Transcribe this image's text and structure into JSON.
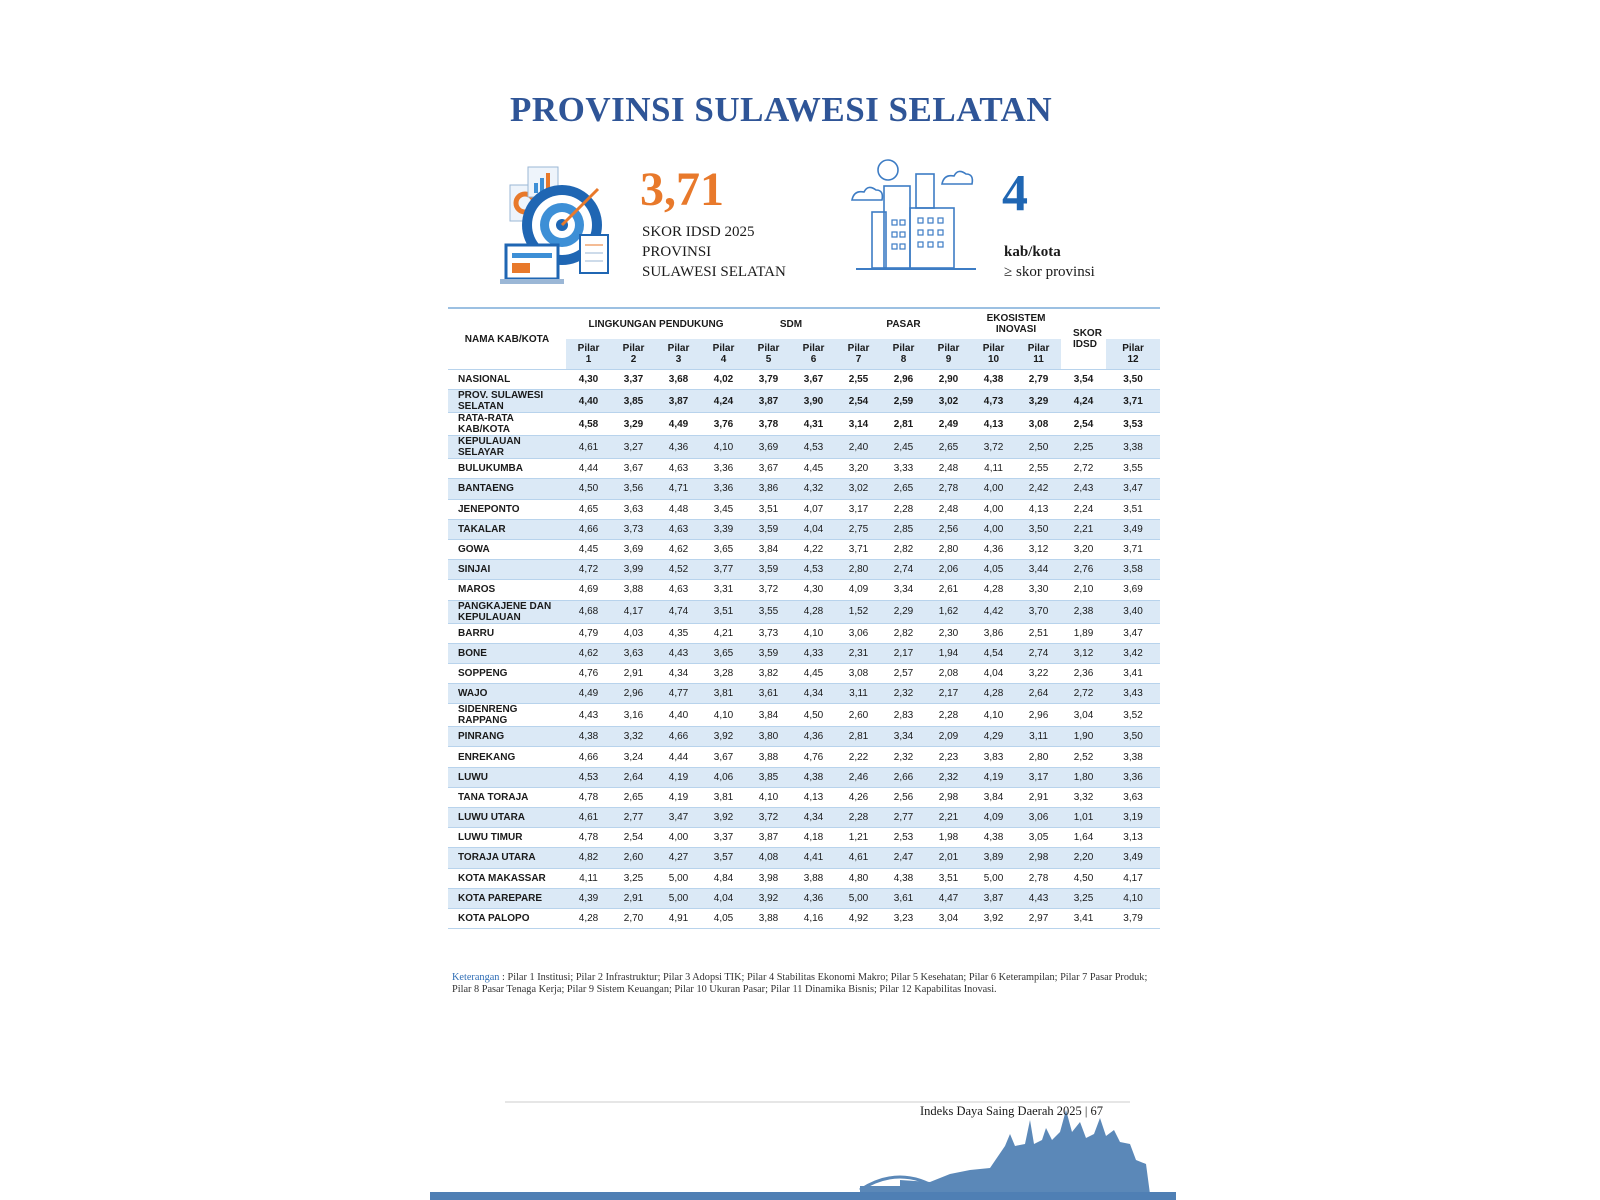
{
  "header": {
    "title": "PROVINSI SULAWESI SELATAN"
  },
  "summary": {
    "score": "3,71",
    "score_caption": [
      "SKOR IDSD 2025",
      "PROVINSI",
      "SULAWESI SELATAN"
    ],
    "count": "4",
    "count_unit": "kab/kota",
    "count_caption": "≥ skor provinsi"
  },
  "table": {
    "name_header": "NAMA KAB/KOTA",
    "score_header": "SKOR IDSD",
    "group_headers": [
      "LINGKUNGAN PENDUKUNG",
      "SDM",
      "PASAR",
      "EKOSISTEM INOVASI"
    ],
    "pillar_headers": [
      "Pilar 1",
      "Pilar 2",
      "Pilar 3",
      "Pilar 4",
      "Pilar 5",
      "Pilar 6",
      "Pilar 7",
      "Pilar 8",
      "Pilar 9",
      "Pilar 10",
      "Pilar 11",
      "Pilar 12"
    ],
    "rows": [
      {
        "name": "NASIONAL",
        "values": [
          "4,30",
          "3,37",
          "3,68",
          "4,02",
          "3,79",
          "3,67",
          "2,55",
          "2,96",
          "2,90",
          "4,38",
          "2,79",
          "3,54"
        ],
        "score": "3,50"
      },
      {
        "name": "PROV. SULAWESI SELATAN",
        "values": [
          "4,40",
          "3,85",
          "3,87",
          "4,24",
          "3,87",
          "3,90",
          "2,54",
          "2,59",
          "3,02",
          "4,73",
          "3,29",
          "4,24"
        ],
        "score": "3,71"
      },
      {
        "name": "RATA-RATA KAB/KOTA",
        "values": [
          "4,58",
          "3,29",
          "4,49",
          "3,76",
          "3,78",
          "4,31",
          "3,14",
          "2,81",
          "2,49",
          "4,13",
          "3,08",
          "2,54"
        ],
        "score": "3,53"
      },
      {
        "name": "KEPULAUAN SELAYAR",
        "values": [
          "4,61",
          "3,27",
          "4,36",
          "4,10",
          "3,69",
          "4,53",
          "2,40",
          "2,45",
          "2,65",
          "3,72",
          "2,50",
          "2,25"
        ],
        "score": "3,38"
      },
      {
        "name": "BULUKUMBA",
        "values": [
          "4,44",
          "3,67",
          "4,63",
          "3,36",
          "3,67",
          "4,45",
          "3,20",
          "3,33",
          "2,48",
          "4,11",
          "2,55",
          "2,72"
        ],
        "score": "3,55"
      },
      {
        "name": "BANTAENG",
        "values": [
          "4,50",
          "3,56",
          "4,71",
          "3,36",
          "3,86",
          "4,32",
          "3,02",
          "2,65",
          "2,78",
          "4,00",
          "2,42",
          "2,43"
        ],
        "score": "3,47"
      },
      {
        "name": "JENEPONTO",
        "values": [
          "4,65",
          "3,63",
          "4,48",
          "3,45",
          "3,51",
          "4,07",
          "3,17",
          "2,28",
          "2,48",
          "4,00",
          "4,13",
          "2,24"
        ],
        "score": "3,51"
      },
      {
        "name": "TAKALAR",
        "values": [
          "4,66",
          "3,73",
          "4,63",
          "3,39",
          "3,59",
          "4,04",
          "2,75",
          "2,85",
          "2,56",
          "4,00",
          "3,50",
          "2,21"
        ],
        "score": "3,49"
      },
      {
        "name": "GOWA",
        "values": [
          "4,45",
          "3,69",
          "4,62",
          "3,65",
          "3,84",
          "4,22",
          "3,71",
          "2,82",
          "2,80",
          "4,36",
          "3,12",
          "3,20"
        ],
        "score": "3,71"
      },
      {
        "name": "SINJAI",
        "values": [
          "4,72",
          "3,99",
          "4,52",
          "3,77",
          "3,59",
          "4,53",
          "2,80",
          "2,74",
          "2,06",
          "4,05",
          "3,44",
          "2,76"
        ],
        "score": "3,58"
      },
      {
        "name": "MAROS",
        "values": [
          "4,69",
          "3,88",
          "4,63",
          "3,31",
          "3,72",
          "4,30",
          "4,09",
          "3,34",
          "2,61",
          "4,28",
          "3,30",
          "2,10"
        ],
        "score": "3,69"
      },
      {
        "name": "PANGKAJENE DAN KEPULAUAN",
        "values": [
          "4,68",
          "4,17",
          "4,74",
          "3,51",
          "3,55",
          "4,28",
          "1,52",
          "2,29",
          "1,62",
          "4,42",
          "3,70",
          "2,38"
        ],
        "score": "3,40"
      },
      {
        "name": "BARRU",
        "values": [
          "4,79",
          "4,03",
          "4,35",
          "4,21",
          "3,73",
          "4,10",
          "3,06",
          "2,82",
          "2,30",
          "3,86",
          "2,51",
          "1,89"
        ],
        "score": "3,47"
      },
      {
        "name": "BONE",
        "values": [
          "4,62",
          "3,63",
          "4,43",
          "3,65",
          "3,59",
          "4,33",
          "2,31",
          "2,17",
          "1,94",
          "4,54",
          "2,74",
          "3,12"
        ],
        "score": "3,42"
      },
      {
        "name": "SOPPENG",
        "values": [
          "4,76",
          "2,91",
          "4,34",
          "3,28",
          "3,82",
          "4,45",
          "3,08",
          "2,57",
          "2,08",
          "4,04",
          "3,22",
          "2,36"
        ],
        "score": "3,41"
      },
      {
        "name": "WAJO",
        "values": [
          "4,49",
          "2,96",
          "4,77",
          "3,81",
          "3,61",
          "4,34",
          "3,11",
          "2,32",
          "2,17",
          "4,28",
          "2,64",
          "2,72"
        ],
        "score": "3,43"
      },
      {
        "name": "SIDENRENG RAPPANG",
        "values": [
          "4,43",
          "3,16",
          "4,40",
          "4,10",
          "3,84",
          "4,50",
          "2,60",
          "2,83",
          "2,28",
          "4,10",
          "2,96",
          "3,04"
        ],
        "score": "3,52"
      },
      {
        "name": "PINRANG",
        "values": [
          "4,38",
          "3,32",
          "4,66",
          "3,92",
          "3,80",
          "4,36",
          "2,81",
          "3,34",
          "2,09",
          "4,29",
          "3,11",
          "1,90"
        ],
        "score": "3,50"
      },
      {
        "name": "ENREKANG",
        "values": [
          "4,66",
          "3,24",
          "4,44",
          "3,67",
          "3,88",
          "4,76",
          "2,22",
          "2,32",
          "2,23",
          "3,83",
          "2,80",
          "2,52"
        ],
        "score": "3,38"
      },
      {
        "name": "LUWU",
        "values": [
          "4,53",
          "2,64",
          "4,19",
          "4,06",
          "3,85",
          "4,38",
          "2,46",
          "2,66",
          "2,32",
          "4,19",
          "3,17",
          "1,80"
        ],
        "score": "3,36"
      },
      {
        "name": "TANA TORAJA",
        "values": [
          "4,78",
          "2,65",
          "4,19",
          "3,81",
          "4,10",
          "4,13",
          "4,26",
          "2,56",
          "2,98",
          "3,84",
          "2,91",
          "3,32"
        ],
        "score": "3,63"
      },
      {
        "name": "LUWU UTARA",
        "values": [
          "4,61",
          "2,77",
          "3,47",
          "3,92",
          "3,72",
          "4,34",
          "2,28",
          "2,77",
          "2,21",
          "4,09",
          "3,06",
          "1,01"
        ],
        "score": "3,19"
      },
      {
        "name": "LUWU TIMUR",
        "values": [
          "4,78",
          "2,54",
          "4,00",
          "3,37",
          "3,87",
          "4,18",
          "1,21",
          "2,53",
          "1,98",
          "4,38",
          "3,05",
          "1,64"
        ],
        "score": "3,13"
      },
      {
        "name": "TORAJA UTARA",
        "values": [
          "4,82",
          "2,60",
          "4,27",
          "3,57",
          "4,08",
          "4,41",
          "4,61",
          "2,47",
          "2,01",
          "3,89",
          "2,98",
          "2,20"
        ],
        "score": "3,49"
      },
      {
        "name": "KOTA MAKASSAR",
        "values": [
          "4,11",
          "3,25",
          "5,00",
          "4,84",
          "3,98",
          "3,88",
          "4,80",
          "4,38",
          "3,51",
          "5,00",
          "2,78",
          "4,50"
        ],
        "score": "4,17"
      },
      {
        "name": "KOTA PAREPARE",
        "values": [
          "4,39",
          "2,91",
          "5,00",
          "4,04",
          "3,92",
          "4,36",
          "5,00",
          "3,61",
          "4,47",
          "3,87",
          "4,43",
          "3,25"
        ],
        "score": "4,10"
      },
      {
        "name": "KOTA PALOPO",
        "values": [
          "4,28",
          "2,70",
          "4,91",
          "4,05",
          "3,88",
          "4,16",
          "4,92",
          "3,23",
          "3,04",
          "3,92",
          "2,97",
          "3,41"
        ],
        "score": "3,79"
      }
    ]
  },
  "note": {
    "label": "Keterangan",
    "text": ": Pilar 1 Institusi; Pilar 2 Infrastruktur; Pilar 3 Adopsi TIK; Pilar 4 Stabilitas Ekonomi Makro; Pilar 5 Kesehatan; Pilar 6 Keterampilan; Pilar 7 Pasar Produk; Pilar 8 Pasar Tenaga Kerja; Pilar 9 Sistem Keuangan; Pilar 10 Ukuran Pasar; Pilar 11 Dinamika Bisnis; Pilar 12 Kapabilitas Inovasi."
  },
  "footer": {
    "text": "Indeks Daya Saing Daerah 2025 | 67"
  }
}
